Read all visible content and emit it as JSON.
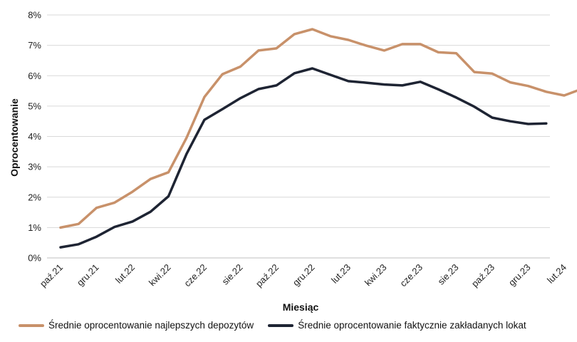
{
  "chart_data": {
    "type": "line",
    "title": "",
    "xlabel": "Miesiąc",
    "ylabel": "Oprocentowanie",
    "ylim": [
      0,
      8
    ],
    "y_ticks": [
      "0%",
      "1%",
      "2%",
      "3%",
      "4%",
      "5%",
      "6%",
      "7%",
      "8%"
    ],
    "grid": "horizontal",
    "legend_position": "bottom",
    "x": [
      "paź.21",
      "lis.21",
      "gru.21",
      "sty.22",
      "lut.22",
      "mar.22",
      "kwi.22",
      "maj.22",
      "cze.22",
      "lip.22",
      "sie.22",
      "wrz.22",
      "paź.22",
      "lis.22",
      "gru.22",
      "sty.23",
      "lut.23",
      "mar.23",
      "kwi.23",
      "maj.23",
      "cze.23",
      "lip.23",
      "sie.23",
      "wrz.23",
      "paź.23",
      "lis.23",
      "gru.23",
      "sty.24",
      "lut.24",
      "mar.24"
    ],
    "x_tick_labels": [
      "paź.21",
      "gru.21",
      "lut.22",
      "kwi.22",
      "cze.22",
      "sie.22",
      "paź.22",
      "gru.22",
      "lut.23",
      "kwi.23",
      "cze.23",
      "sie.23",
      "paź.23",
      "gru.23",
      "lut.24"
    ],
    "series": [
      {
        "name": "Średnie oprocentowanie najlepszych depozytów",
        "color": "#c8916a",
        "values": [
          1.0,
          1.12,
          1.65,
          1.82,
          2.18,
          2.6,
          2.82,
          3.95,
          5.3,
          6.05,
          6.3,
          6.83,
          6.9,
          7.37,
          7.53,
          7.3,
          7.18,
          6.99,
          6.83,
          7.04,
          7.04,
          6.77,
          6.74,
          6.12,
          6.07,
          5.78,
          5.66,
          5.47,
          5.35,
          5.57
        ]
      },
      {
        "name": "Średnie oprocentowanie faktycznie zakładanych lokat",
        "color": "#1e2433",
        "values": [
          0.35,
          0.45,
          0.7,
          1.02,
          1.2,
          1.52,
          2.03,
          3.42,
          4.55,
          4.9,
          5.26,
          5.56,
          5.68,
          6.08,
          6.24,
          6.03,
          5.82,
          5.77,
          5.71,
          5.68,
          5.8,
          5.55,
          5.28,
          4.98,
          4.62,
          4.5,
          4.41,
          4.43,
          null,
          null
        ]
      }
    ]
  }
}
